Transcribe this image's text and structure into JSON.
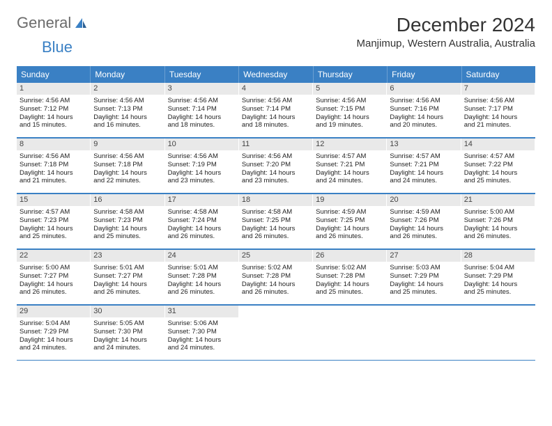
{
  "logo": {
    "text1": "General",
    "text2": "Blue"
  },
  "title": "December 2024",
  "location": "Manjimup, Western Australia, Australia",
  "header_bg": "#3a80c4",
  "dayNames": [
    "Sunday",
    "Monday",
    "Tuesday",
    "Wednesday",
    "Thursday",
    "Friday",
    "Saturday"
  ],
  "weeks": [
    [
      {
        "n": "1",
        "sr": "Sunrise: 4:56 AM",
        "ss": "Sunset: 7:12 PM",
        "d1": "Daylight: 14 hours",
        "d2": "and 15 minutes."
      },
      {
        "n": "2",
        "sr": "Sunrise: 4:56 AM",
        "ss": "Sunset: 7:13 PM",
        "d1": "Daylight: 14 hours",
        "d2": "and 16 minutes."
      },
      {
        "n": "3",
        "sr": "Sunrise: 4:56 AM",
        "ss": "Sunset: 7:14 PM",
        "d1": "Daylight: 14 hours",
        "d2": "and 18 minutes."
      },
      {
        "n": "4",
        "sr": "Sunrise: 4:56 AM",
        "ss": "Sunset: 7:14 PM",
        "d1": "Daylight: 14 hours",
        "d2": "and 18 minutes."
      },
      {
        "n": "5",
        "sr": "Sunrise: 4:56 AM",
        "ss": "Sunset: 7:15 PM",
        "d1": "Daylight: 14 hours",
        "d2": "and 19 minutes."
      },
      {
        "n": "6",
        "sr": "Sunrise: 4:56 AM",
        "ss": "Sunset: 7:16 PM",
        "d1": "Daylight: 14 hours",
        "d2": "and 20 minutes."
      },
      {
        "n": "7",
        "sr": "Sunrise: 4:56 AM",
        "ss": "Sunset: 7:17 PM",
        "d1": "Daylight: 14 hours",
        "d2": "and 21 minutes."
      }
    ],
    [
      {
        "n": "8",
        "sr": "Sunrise: 4:56 AM",
        "ss": "Sunset: 7:18 PM",
        "d1": "Daylight: 14 hours",
        "d2": "and 21 minutes."
      },
      {
        "n": "9",
        "sr": "Sunrise: 4:56 AM",
        "ss": "Sunset: 7:18 PM",
        "d1": "Daylight: 14 hours",
        "d2": "and 22 minutes."
      },
      {
        "n": "10",
        "sr": "Sunrise: 4:56 AM",
        "ss": "Sunset: 7:19 PM",
        "d1": "Daylight: 14 hours",
        "d2": "and 23 minutes."
      },
      {
        "n": "11",
        "sr": "Sunrise: 4:56 AM",
        "ss": "Sunset: 7:20 PM",
        "d1": "Daylight: 14 hours",
        "d2": "and 23 minutes."
      },
      {
        "n": "12",
        "sr": "Sunrise: 4:57 AM",
        "ss": "Sunset: 7:21 PM",
        "d1": "Daylight: 14 hours",
        "d2": "and 24 minutes."
      },
      {
        "n": "13",
        "sr": "Sunrise: 4:57 AM",
        "ss": "Sunset: 7:21 PM",
        "d1": "Daylight: 14 hours",
        "d2": "and 24 minutes."
      },
      {
        "n": "14",
        "sr": "Sunrise: 4:57 AM",
        "ss": "Sunset: 7:22 PM",
        "d1": "Daylight: 14 hours",
        "d2": "and 25 minutes."
      }
    ],
    [
      {
        "n": "15",
        "sr": "Sunrise: 4:57 AM",
        "ss": "Sunset: 7:23 PM",
        "d1": "Daylight: 14 hours",
        "d2": "and 25 minutes."
      },
      {
        "n": "16",
        "sr": "Sunrise: 4:58 AM",
        "ss": "Sunset: 7:23 PM",
        "d1": "Daylight: 14 hours",
        "d2": "and 25 minutes."
      },
      {
        "n": "17",
        "sr": "Sunrise: 4:58 AM",
        "ss": "Sunset: 7:24 PM",
        "d1": "Daylight: 14 hours",
        "d2": "and 26 minutes."
      },
      {
        "n": "18",
        "sr": "Sunrise: 4:58 AM",
        "ss": "Sunset: 7:25 PM",
        "d1": "Daylight: 14 hours",
        "d2": "and 26 minutes."
      },
      {
        "n": "19",
        "sr": "Sunrise: 4:59 AM",
        "ss": "Sunset: 7:25 PM",
        "d1": "Daylight: 14 hours",
        "d2": "and 26 minutes."
      },
      {
        "n": "20",
        "sr": "Sunrise: 4:59 AM",
        "ss": "Sunset: 7:26 PM",
        "d1": "Daylight: 14 hours",
        "d2": "and 26 minutes."
      },
      {
        "n": "21",
        "sr": "Sunrise: 5:00 AM",
        "ss": "Sunset: 7:26 PM",
        "d1": "Daylight: 14 hours",
        "d2": "and 26 minutes."
      }
    ],
    [
      {
        "n": "22",
        "sr": "Sunrise: 5:00 AM",
        "ss": "Sunset: 7:27 PM",
        "d1": "Daylight: 14 hours",
        "d2": "and 26 minutes."
      },
      {
        "n": "23",
        "sr": "Sunrise: 5:01 AM",
        "ss": "Sunset: 7:27 PM",
        "d1": "Daylight: 14 hours",
        "d2": "and 26 minutes."
      },
      {
        "n": "24",
        "sr": "Sunrise: 5:01 AM",
        "ss": "Sunset: 7:28 PM",
        "d1": "Daylight: 14 hours",
        "d2": "and 26 minutes."
      },
      {
        "n": "25",
        "sr": "Sunrise: 5:02 AM",
        "ss": "Sunset: 7:28 PM",
        "d1": "Daylight: 14 hours",
        "d2": "and 26 minutes."
      },
      {
        "n": "26",
        "sr": "Sunrise: 5:02 AM",
        "ss": "Sunset: 7:28 PM",
        "d1": "Daylight: 14 hours",
        "d2": "and 25 minutes."
      },
      {
        "n": "27",
        "sr": "Sunrise: 5:03 AM",
        "ss": "Sunset: 7:29 PM",
        "d1": "Daylight: 14 hours",
        "d2": "and 25 minutes."
      },
      {
        "n": "28",
        "sr": "Sunrise: 5:04 AM",
        "ss": "Sunset: 7:29 PM",
        "d1": "Daylight: 14 hours",
        "d2": "and 25 minutes."
      }
    ],
    [
      {
        "n": "29",
        "sr": "Sunrise: 5:04 AM",
        "ss": "Sunset: 7:29 PM",
        "d1": "Daylight: 14 hours",
        "d2": "and 24 minutes."
      },
      {
        "n": "30",
        "sr": "Sunrise: 5:05 AM",
        "ss": "Sunset: 7:30 PM",
        "d1": "Daylight: 14 hours",
        "d2": "and 24 minutes."
      },
      {
        "n": "31",
        "sr": "Sunrise: 5:06 AM",
        "ss": "Sunset: 7:30 PM",
        "d1": "Daylight: 14 hours",
        "d2": "and 24 minutes."
      },
      {
        "empty": true
      },
      {
        "empty": true
      },
      {
        "empty": true
      },
      {
        "empty": true
      }
    ]
  ]
}
